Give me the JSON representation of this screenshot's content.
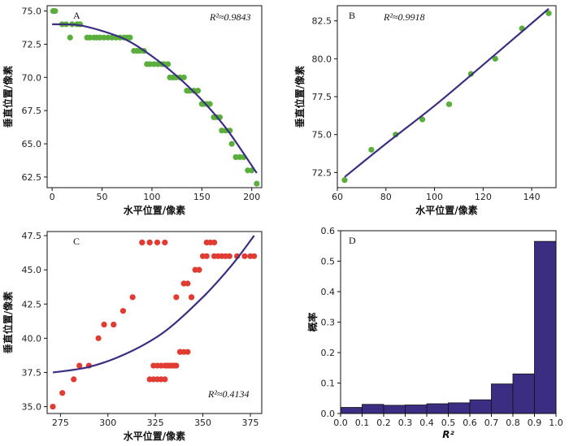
{
  "figure": {
    "title": ""
  },
  "chart_data": [
    {
      "panel": "A",
      "type": "scatter",
      "xlabel": "水平位置/像素",
      "ylabel": "垂直位置/像素",
      "annotation": "R²≈0.9843",
      "xlim": [
        -5,
        210
      ],
      "ylim": [
        61.7,
        75.4
      ],
      "xticks": [
        0,
        50,
        100,
        150,
        200
      ],
      "yticks": [
        62.5,
        65.0,
        67.5,
        70.0,
        72.5,
        75.0
      ],
      "point_color": "#5aaf3c",
      "line_color": "#3b2e82",
      "x": [
        1,
        3,
        10,
        14,
        18,
        20,
        25,
        28,
        35,
        38,
        42,
        45,
        48,
        52,
        56,
        60,
        64,
        68,
        72,
        75,
        78,
        82,
        85,
        88,
        92,
        95,
        98,
        102,
        106,
        110,
        112,
        116,
        118,
        121,
        124,
        128,
        132,
        135,
        138,
        142,
        146,
        150,
        152,
        155,
        158,
        162,
        165,
        168,
        170,
        174,
        178,
        180,
        184,
        188,
        192,
        196,
        200,
        205
      ],
      "y": [
        75,
        75,
        74,
        74,
        73,
        74,
        74,
        74,
        73,
        73,
        73,
        73,
        73,
        73,
        73,
        73,
        73,
        73,
        73,
        73,
        73,
        72,
        72,
        72,
        72,
        71,
        71,
        71,
        71,
        71,
        71,
        71,
        70,
        70,
        70,
        70,
        70,
        69,
        69,
        69,
        69,
        68,
        68,
        68,
        68,
        67,
        67,
        67,
        66,
        66,
        66,
        65,
        64,
        64,
        64,
        63,
        63,
        62
      ],
      "fit_x": [
        0,
        25,
        50,
        75,
        100,
        125,
        150,
        175,
        205
      ],
      "fit_y": [
        74,
        73.95,
        73.5,
        72.8,
        71.6,
        70.1,
        68.3,
        66.1,
        62.8
      ]
    },
    {
      "panel": "B",
      "type": "scatter",
      "xlabel": "水平位置/像素",
      "ylabel": "垂直位置/像素",
      "annotation": "R²≈0.9918",
      "xlim": [
        60,
        150
      ],
      "ylim": [
        71.5,
        83.5
      ],
      "xticks": [
        60,
        80,
        100,
        120,
        140
      ],
      "yticks": [
        72.5,
        75.0,
        77.5,
        80.0,
        82.5
      ],
      "point_color": "#5aaf3c",
      "line_color": "#3b2e82",
      "x": [
        63,
        74,
        84,
        95,
        106,
        115,
        125,
        136,
        147
      ],
      "y": [
        72,
        74,
        75,
        76,
        77,
        79,
        80,
        82,
        83
      ],
      "fit_x": [
        63,
        80,
        100,
        120,
        147
      ],
      "fit_y": [
        72.2,
        74.4,
        76.9,
        79.6,
        83.3
      ]
    },
    {
      "panel": "C",
      "type": "scatter",
      "xlabel": "水平位置/像素",
      "ylabel": "垂直位置/像素",
      "annotation": "R²≈0.4134",
      "xlim": [
        268,
        381
      ],
      "ylim": [
        34.5,
        47.8
      ],
      "xticks": [
        275,
        300,
        325,
        350,
        375
      ],
      "yticks": [
        35.0,
        37.5,
        40.0,
        42.5,
        45.0,
        47.5
      ],
      "point_color": "#e03c32",
      "line_color": "#3b2e82",
      "x": [
        271,
        276,
        282,
        285,
        290,
        295,
        298,
        303,
        308,
        313,
        318,
        322,
        324,
        326,
        328,
        330,
        331,
        333,
        335,
        338,
        340,
        342,
        344,
        346,
        348,
        350,
        352,
        354,
        356,
        358,
        360,
        362,
        364,
        368,
        372,
        375,
        377,
        322,
        324,
        326,
        328,
        330,
        332,
        334,
        336,
        338,
        340,
        342,
        318,
        322,
        326,
        330,
        336,
        340,
        344,
        348,
        352,
        356
      ],
      "y": [
        35,
        36,
        37,
        38,
        38,
        40,
        41,
        41,
        42,
        43,
        47,
        47,
        37,
        37,
        37,
        37,
        38,
        38,
        38,
        39,
        39,
        39,
        43,
        45,
        45,
        46,
        47,
        47,
        46,
        46,
        46,
        46,
        46,
        46,
        46,
        46,
        46,
        37,
        38,
        38,
        38,
        38,
        38,
        38,
        38,
        39,
        44,
        44,
        47,
        47,
        47,
        47,
        43,
        44,
        43,
        45,
        46,
        47
      ],
      "fit_x": [
        271,
        290,
        310,
        330,
        350,
        365,
        377
      ],
      "fit_y": [
        37.5,
        37.9,
        38.9,
        40.5,
        43.0,
        45.3,
        47.5
      ]
    },
    {
      "panel": "D",
      "type": "bar",
      "xlabel": "R²",
      "ylabel": "概率",
      "xlim": [
        0,
        1
      ],
      "ylim": [
        0,
        0.6
      ],
      "xticks": [
        "0.0",
        "0.1",
        "0.2",
        "0.3",
        "0.4",
        "0.5",
        "0.6",
        "0.7",
        "0.8",
        "0.9",
        "1.0"
      ],
      "yticks": [
        0,
        0.1,
        0.2,
        0.3,
        0.4,
        0.5,
        0.6
      ],
      "bar_color": "#3b2e82",
      "bins": [
        0.0,
        0.1,
        0.2,
        0.3,
        0.4,
        0.5,
        0.6,
        0.7,
        0.8,
        0.9
      ],
      "values": [
        0.02,
        0.03,
        0.027,
        0.028,
        0.032,
        0.035,
        0.045,
        0.097,
        0.13,
        0.565
      ]
    }
  ]
}
